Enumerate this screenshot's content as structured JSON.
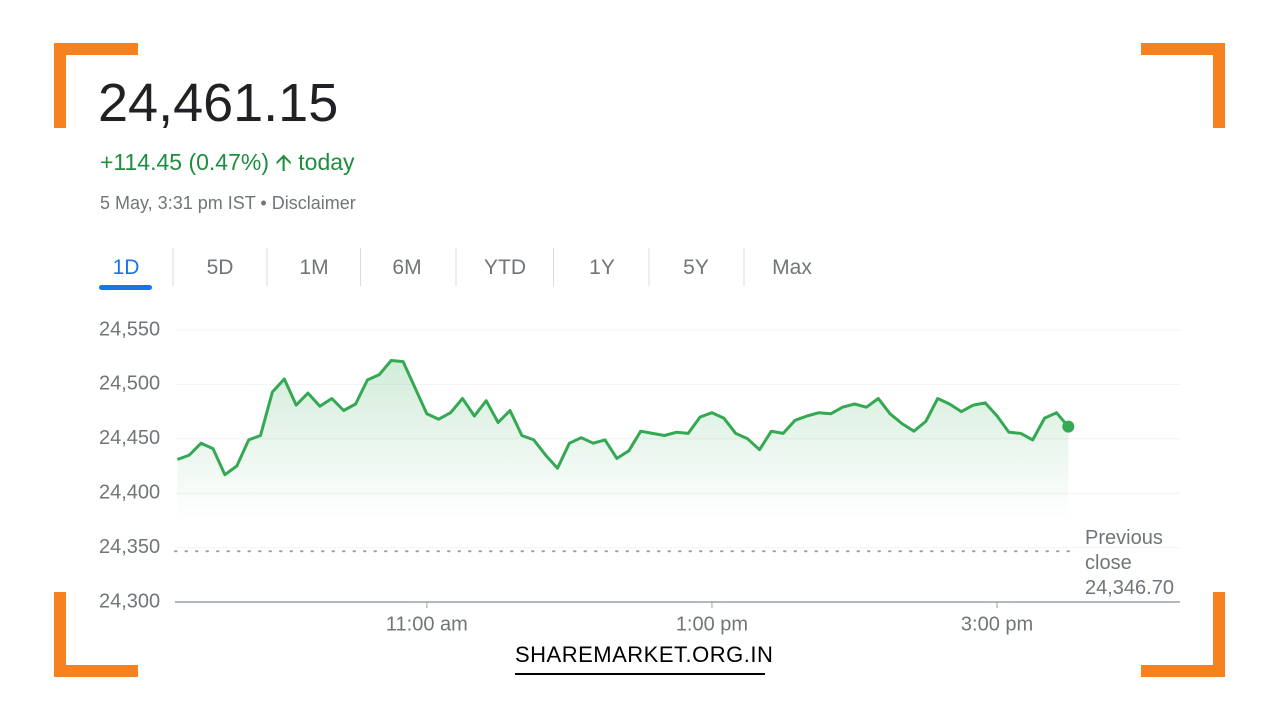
{
  "header": {
    "price": "24,461.15",
    "change": "+114.45 (0.47%)",
    "change_period": "today",
    "timestamp": "5 May, 3:31 pm IST",
    "disclaimer": "Disclaimer"
  },
  "tabs": {
    "items": [
      "1D",
      "5D",
      "1M",
      "6M",
      "YTD",
      "1Y",
      "5Y",
      "Max"
    ],
    "selected_index": 0
  },
  "chart_data": {
    "type": "line",
    "color": "#34a853",
    "x": [
      555,
      560,
      565,
      570,
      575,
      580,
      585,
      590,
      595,
      600,
      605,
      610,
      615,
      620,
      625,
      630,
      635,
      640,
      645,
      650,
      655,
      660,
      665,
      670,
      675,
      680,
      685,
      690,
      695,
      700,
      705,
      710,
      715,
      720,
      725,
      730,
      735,
      740,
      745,
      750,
      755,
      760,
      765,
      770,
      775,
      780,
      785,
      790,
      795,
      800,
      805,
      810,
      815,
      820,
      825,
      830,
      835,
      840,
      845,
      850,
      855,
      860,
      865,
      870,
      875,
      880,
      885,
      890,
      895,
      900,
      905,
      910,
      915,
      920,
      925,
      930
    ],
    "values": [
      24431,
      24435,
      24446,
      24441,
      24417,
      24425,
      24449,
      24453,
      24493,
      24505,
      24481,
      24492,
      24480,
      24487,
      24476,
      24482,
      24504,
      24509,
      24522,
      24521,
      24497,
      24473,
      24468,
      24474,
      24487,
      24471,
      24485,
      24465,
      24476,
      24453,
      24449,
      24435,
      24423,
      24446,
      24451,
      24446,
      24449,
      24432,
      24439,
      24457,
      24455,
      24453,
      24456,
      24455,
      24470,
      24474,
      24469,
      24455,
      24450,
      24440,
      24457,
      24455,
      24467,
      24471,
      24474,
      24473,
      24479,
      24482,
      24479,
      24487,
      24473,
      24464,
      24457,
      24466,
      24487,
      24482,
      24475,
      24481,
      24483,
      24471,
      24456,
      24455,
      24449,
      24469,
      24474,
      24461.15
    ],
    "xlim": [
      554,
      977
    ],
    "xticks": [
      {
        "value": 660,
        "label": "11:00 am"
      },
      {
        "value": 780,
        "label": "1:00 pm"
      },
      {
        "value": 900,
        "label": "3:00 pm"
      }
    ],
    "ylim": [
      24300,
      24550
    ],
    "yticks": [
      {
        "value": 24300,
        "label": "24,300"
      },
      {
        "value": 24350,
        "label": "24,350"
      },
      {
        "value": 24400,
        "label": "24,400"
      },
      {
        "value": 24450,
        "label": "24,450"
      },
      {
        "value": 24500,
        "label": "24,500"
      },
      {
        "value": 24550,
        "label": "24,550"
      }
    ],
    "grid": true,
    "previous_close": {
      "label": "Previous close",
      "value": 24346.7,
      "value_label": "24,346.70"
    }
  },
  "footer": {
    "site": "SHAREMARKET.ORG.IN"
  }
}
